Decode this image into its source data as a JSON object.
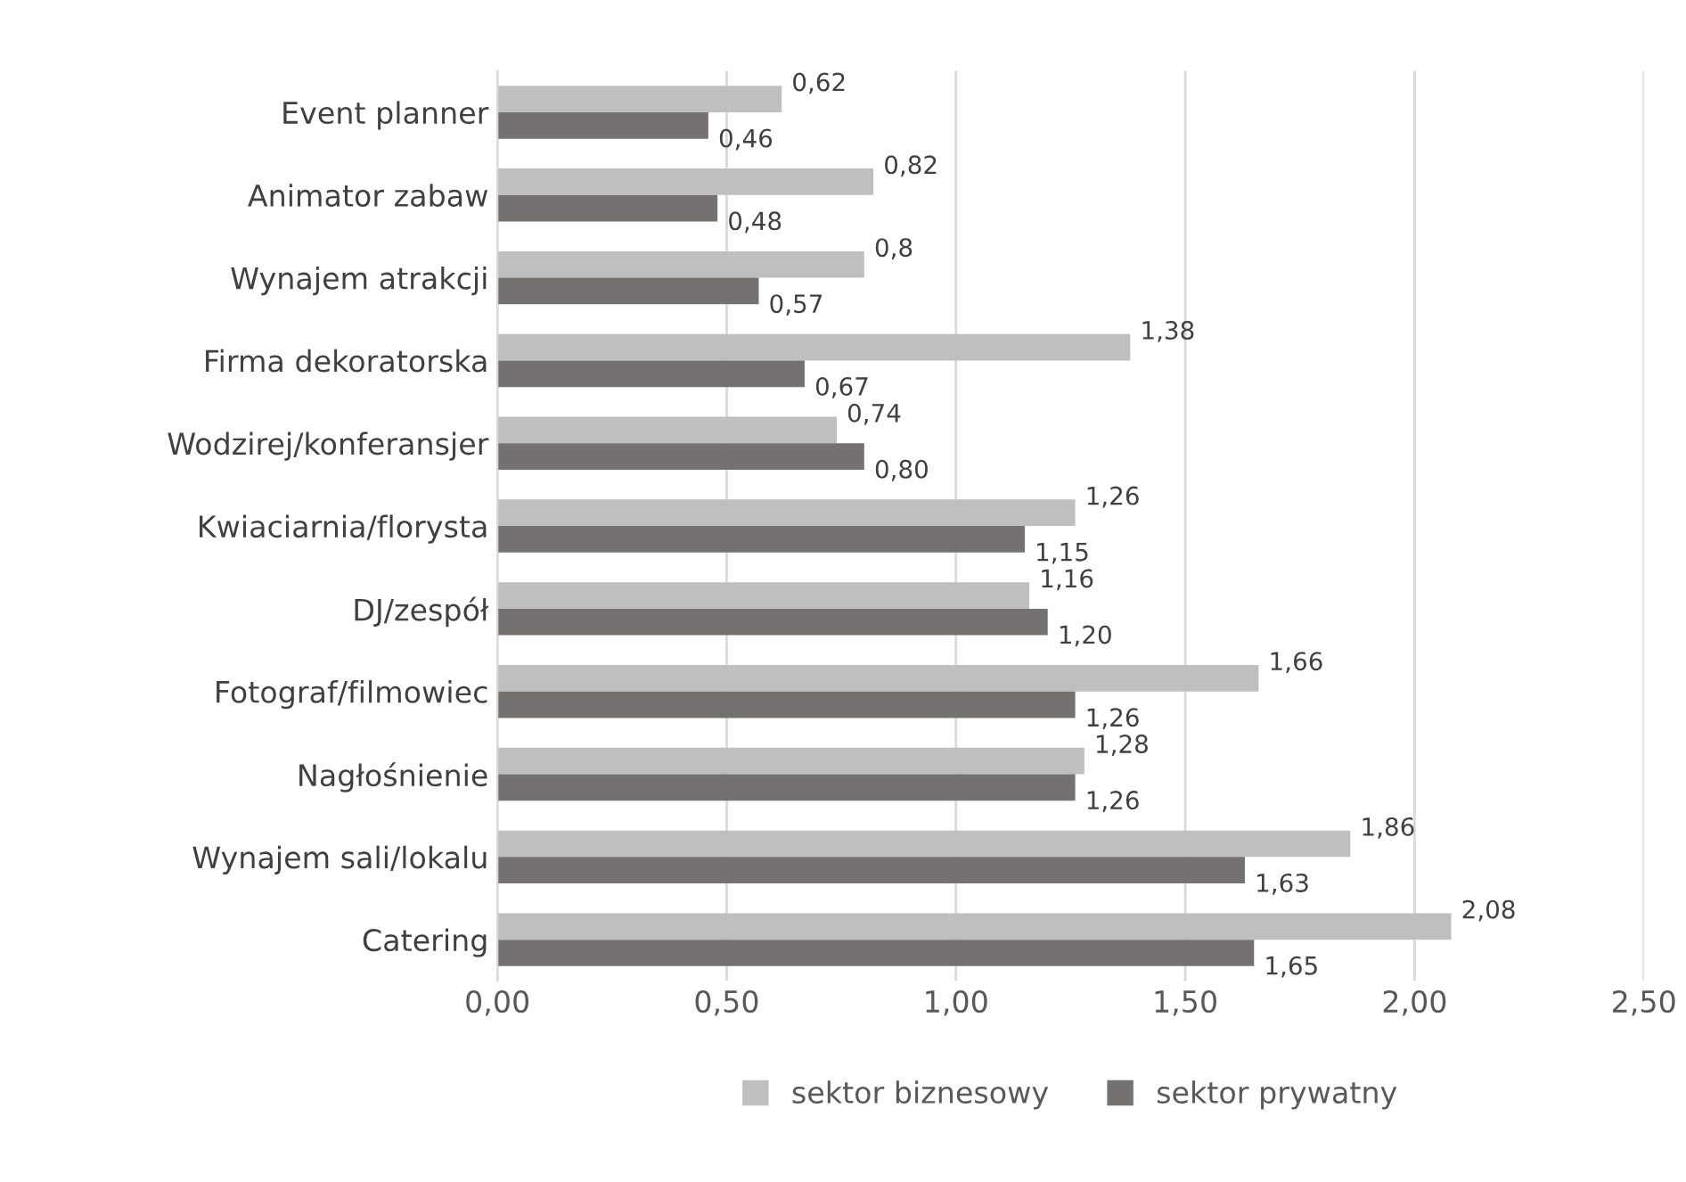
{
  "chart_data": {
    "type": "bar",
    "orientation": "horizontal",
    "categories": [
      "Event planner",
      "Animator zabaw",
      "Wynajem atrakcji",
      "Firma dekoratorska",
      "Wodzirej/konferansjer",
      "Kwiaciarnia/florysta",
      "DJ/zespół",
      "Fotograf/filmowiec",
      "Nagłośnienie",
      "Wynajem sali/lokalu",
      "Catering"
    ],
    "series": [
      {
        "name": "sektor biznesowy",
        "color": "#bfbfbf",
        "values": [
          0.62,
          0.82,
          0.8,
          1.38,
          0.74,
          1.26,
          1.16,
          1.66,
          1.28,
          1.86,
          2.08
        ],
        "value_labels": [
          "0,62",
          "0,82",
          "0,8",
          "1,38",
          "0,74",
          "1,26",
          "1,16",
          "1,66",
          "1,28",
          "1,86",
          "2,08"
        ]
      },
      {
        "name": "sektor prywatny",
        "color": "#767171",
        "values": [
          0.46,
          0.48,
          0.57,
          0.67,
          0.8,
          1.15,
          1.2,
          1.26,
          1.26,
          1.63,
          1.65
        ],
        "value_labels": [
          "0,46",
          "0,48",
          "0,57",
          "0,67",
          "0,80",
          "1,15",
          "1,20",
          "1,26",
          "1,26",
          "1,63",
          "1,65"
        ]
      }
    ],
    "xlim": [
      0,
      2.5
    ],
    "xticks": [
      {
        "value": 0,
        "label": "0,00"
      },
      {
        "value": 0.5,
        "label": "0,50"
      },
      {
        "value": 1,
        "label": "1,00"
      },
      {
        "value": 1.5,
        "label": "1,50"
      },
      {
        "value": 2,
        "label": "2,00"
      },
      {
        "value": 2.5,
        "label": "2,50"
      }
    ],
    "grid": "x",
    "legend": "bottom"
  }
}
